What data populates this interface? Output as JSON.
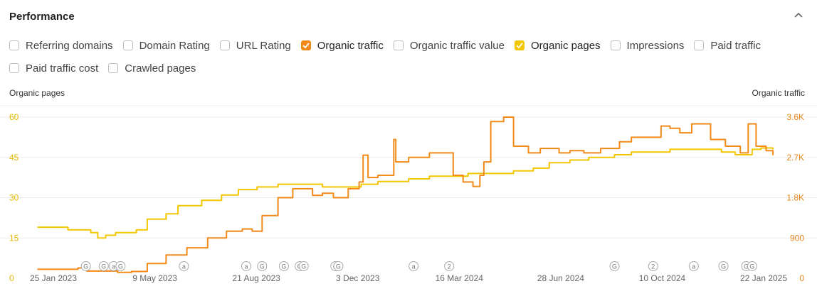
{
  "header": {
    "title": "Performance"
  },
  "metrics_row1": [
    {
      "label": "Referring domains",
      "checked": false,
      "color": ""
    },
    {
      "label": "Domain Rating",
      "checked": false,
      "color": ""
    },
    {
      "label": "URL Rating",
      "checked": false,
      "color": ""
    },
    {
      "label": "Organic traffic",
      "checked": true,
      "color": "#f28a1a"
    },
    {
      "label": "Organic traffic value",
      "checked": false,
      "color": ""
    },
    {
      "label": "Organic pages",
      "checked": true,
      "color": "#f2c700"
    },
    {
      "label": "Impressions",
      "checked": false,
      "color": ""
    },
    {
      "label": "Paid traffic",
      "checked": false,
      "color": ""
    }
  ],
  "metrics_row2": [
    {
      "label": "Paid traffic cost",
      "checked": false,
      "color": ""
    },
    {
      "label": "Crawled pages",
      "checked": false,
      "color": ""
    }
  ],
  "chart_data": {
    "type": "line",
    "left_axis_title": "Organic pages",
    "right_axis_title": "Organic traffic",
    "left_ticks": [
      "0",
      "15",
      "30",
      "45",
      "60"
    ],
    "right_ticks": [
      "0",
      "900",
      "1.8K",
      "2.7K",
      "3.6K"
    ],
    "left_ylim": [
      0,
      60
    ],
    "right_ylim": [
      0,
      3600
    ],
    "x_tick_labels": [
      "25 Jan 2023",
      "9 May 2023",
      "21 Aug 2023",
      "3 Dec 2023",
      "16 Mar 2024",
      "28 Jun 2024",
      "10 Oct 2024",
      "22 Jan 2025"
    ],
    "x_range": [
      "2023-01-01",
      "2025-02-01"
    ],
    "grid": true,
    "series": [
      {
        "name": "Organic pages",
        "axis": "left",
        "color": "#f2c700",
        "points": [
          [
            "2023-01-10",
            19
          ],
          [
            "2023-02-05",
            19
          ],
          [
            "2023-02-10",
            18
          ],
          [
            "2023-03-05",
            17
          ],
          [
            "2023-03-12",
            15
          ],
          [
            "2023-03-20",
            16
          ],
          [
            "2023-03-30",
            17
          ],
          [
            "2023-04-20",
            18
          ],
          [
            "2023-05-01",
            22
          ],
          [
            "2023-05-20",
            24
          ],
          [
            "2023-06-01",
            27
          ],
          [
            "2023-06-20",
            27
          ],
          [
            "2023-06-25",
            29
          ],
          [
            "2023-07-15",
            31
          ],
          [
            "2023-08-01",
            33
          ],
          [
            "2023-08-20",
            34
          ],
          [
            "2023-09-10",
            35
          ],
          [
            "2023-10-10",
            35
          ],
          [
            "2023-10-25",
            34
          ],
          [
            "2023-11-20",
            34
          ],
          [
            "2023-12-03",
            35
          ],
          [
            "2023-12-20",
            36
          ],
          [
            "2024-01-20",
            37
          ],
          [
            "2024-02-10",
            38
          ],
          [
            "2024-03-01",
            38
          ],
          [
            "2024-03-20",
            39
          ],
          [
            "2024-04-20",
            39
          ],
          [
            "2024-05-05",
            40
          ],
          [
            "2024-05-25",
            41
          ],
          [
            "2024-06-10",
            43
          ],
          [
            "2024-07-01",
            44
          ],
          [
            "2024-07-20",
            45
          ],
          [
            "2024-08-15",
            46
          ],
          [
            "2024-09-01",
            47
          ],
          [
            "2024-10-10",
            48
          ],
          [
            "2024-11-20",
            48
          ],
          [
            "2024-12-01",
            47
          ],
          [
            "2024-12-15",
            46
          ],
          [
            "2025-01-01",
            48
          ],
          [
            "2025-01-10",
            48.5
          ],
          [
            "2025-01-22",
            48
          ]
        ]
      },
      {
        "name": "Organic traffic",
        "axis": "right",
        "color": "#f28a1a",
        "points": [
          [
            "2023-01-10",
            200
          ],
          [
            "2023-02-20",
            230
          ],
          [
            "2023-03-01",
            160
          ],
          [
            "2023-04-01",
            130
          ],
          [
            "2023-04-15",
            150
          ],
          [
            "2023-05-01",
            330
          ],
          [
            "2023-05-20",
            520
          ],
          [
            "2023-06-10",
            680
          ],
          [
            "2023-07-01",
            900
          ],
          [
            "2023-07-20",
            1050
          ],
          [
            "2023-08-05",
            1100
          ],
          [
            "2023-08-15",
            1050
          ],
          [
            "2023-08-25",
            1400
          ],
          [
            "2023-09-10",
            1800
          ],
          [
            "2023-09-25",
            2000
          ],
          [
            "2023-10-15",
            1850
          ],
          [
            "2023-10-25",
            1900
          ],
          [
            "2023-11-05",
            1800
          ],
          [
            "2023-11-20",
            2000
          ],
          [
            "2023-12-01",
            2150
          ],
          [
            "2023-12-05",
            2750
          ],
          [
            "2023-12-10",
            2250
          ],
          [
            "2023-12-20",
            2300
          ],
          [
            "2024-01-05",
            3100
          ],
          [
            "2024-01-07",
            2600
          ],
          [
            "2024-01-20",
            2700
          ],
          [
            "2024-02-10",
            2800
          ],
          [
            "2024-02-25",
            2800
          ],
          [
            "2024-03-05",
            2300
          ],
          [
            "2024-03-15",
            2150
          ],
          [
            "2024-03-25",
            2050
          ],
          [
            "2024-04-01",
            2300
          ],
          [
            "2024-04-05",
            2600
          ],
          [
            "2024-04-12",
            3500
          ],
          [
            "2024-04-25",
            3600
          ],
          [
            "2024-05-05",
            2950
          ],
          [
            "2024-05-20",
            2800
          ],
          [
            "2024-06-01",
            2900
          ],
          [
            "2024-06-20",
            2800
          ],
          [
            "2024-07-01",
            2850
          ],
          [
            "2024-07-15",
            2800
          ],
          [
            "2024-08-01",
            2900
          ],
          [
            "2024-08-20",
            3050
          ],
          [
            "2024-09-01",
            3150
          ],
          [
            "2024-09-20",
            3150
          ],
          [
            "2024-10-01",
            3400
          ],
          [
            "2024-10-10",
            3350
          ],
          [
            "2024-10-20",
            3250
          ],
          [
            "2024-11-01",
            3450
          ],
          [
            "2024-11-20",
            3100
          ],
          [
            "2024-12-05",
            2950
          ],
          [
            "2024-12-20",
            2800
          ],
          [
            "2024-12-28",
            3450
          ],
          [
            "2025-01-05",
            2950
          ],
          [
            "2025-01-15",
            2850
          ],
          [
            "2025-01-22",
            2750
          ]
        ]
      }
    ],
    "annotations": [
      {
        "date": "2023-02-28",
        "symbol": "G"
      },
      {
        "date": "2023-03-18",
        "symbol": "G"
      },
      {
        "date": "2023-03-28",
        "symbol": "a"
      },
      {
        "date": "2023-04-04",
        "symbol": "G"
      },
      {
        "date": "2023-06-07",
        "symbol": "a"
      },
      {
        "date": "2023-08-09",
        "symbol": "a"
      },
      {
        "date": "2023-08-25",
        "symbol": "G"
      },
      {
        "date": "2023-09-16",
        "symbol": "G"
      },
      {
        "date": "2023-10-02",
        "symbol": "G"
      },
      {
        "date": "2023-10-06",
        "symbol": "G"
      },
      {
        "date": "2023-11-07",
        "symbol": "G"
      },
      {
        "date": "2023-11-10",
        "symbol": "G"
      },
      {
        "date": "2024-01-25",
        "symbol": "a"
      },
      {
        "date": "2024-03-01",
        "symbol": "2"
      },
      {
        "date": "2024-08-15",
        "symbol": "G"
      },
      {
        "date": "2024-09-23",
        "symbol": "2"
      },
      {
        "date": "2024-11-03",
        "symbol": "a"
      },
      {
        "date": "2024-12-03",
        "symbol": "G"
      },
      {
        "date": "2024-12-26",
        "symbol": "G"
      },
      {
        "date": "2025-01-01",
        "symbol": "G"
      }
    ]
  }
}
